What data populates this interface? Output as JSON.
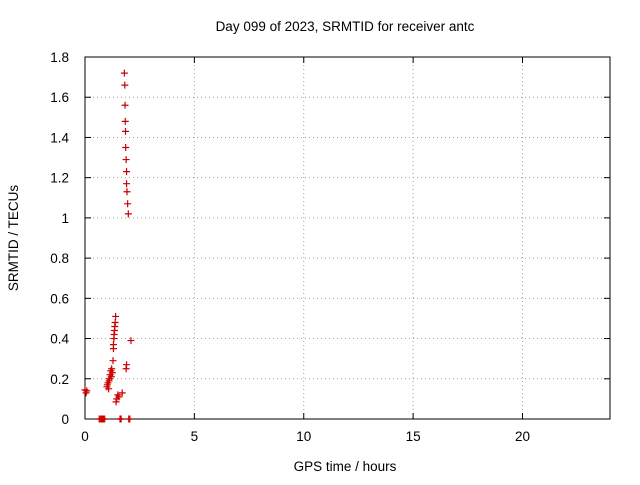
{
  "chart_data": {
    "type": "scatter",
    "title": "Day 099 of 2023, SRMTID for receiver antc",
    "xlabel": "GPS time / hours",
    "ylabel": "SRMTID / TECUs",
    "xlim": [
      0,
      24
    ],
    "ylim": [
      0,
      1.8
    ],
    "xticks": [
      0,
      5,
      10,
      15,
      20
    ],
    "yticks": [
      0,
      0.2,
      0.4,
      0.6,
      0.8,
      1,
      1.2,
      1.4,
      1.6,
      1.8
    ],
    "ytick_labels": [
      "0",
      "0.2",
      "0.4",
      "0.6",
      "0.8",
      "1",
      "1.2",
      "1.4",
      "1.6",
      "1.8"
    ],
    "grid": true,
    "marker": "plus",
    "color": "#cc0000",
    "series": [
      {
        "name": "SRMTID",
        "x": [
          0.0,
          0.05,
          0.08,
          0.65,
          0.7,
          0.75,
          0.8,
          0.85,
          0.9,
          1.0,
          1.02,
          1.05,
          1.08,
          1.1,
          1.12,
          1.15,
          1.18,
          1.2,
          1.22,
          1.25,
          1.28,
          1.3,
          1.3,
          1.32,
          1.33,
          1.35,
          1.36,
          1.38,
          1.4,
          1.42,
          1.45,
          1.5,
          1.55,
          1.6,
          1.62,
          1.65,
          1.7,
          1.8,
          1.82,
          1.83,
          1.84,
          1.85,
          1.86,
          1.88,
          1.9,
          1.9,
          1.92,
          1.95,
          1.98,
          1.88,
          1.9,
          2.0,
          2.05,
          2.1
        ],
        "y": [
          0.145,
          0.13,
          0.14,
          0.0,
          0.0,
          0.0,
          0.0,
          0.0,
          0.0,
          0.16,
          0.17,
          0.18,
          0.15,
          0.19,
          0.2,
          0.22,
          0.24,
          0.21,
          0.25,
          0.23,
          0.29,
          0.35,
          0.37,
          0.4,
          0.42,
          0.44,
          0.46,
          0.48,
          0.51,
          0.085,
          0.1,
          0.12,
          0.11,
          0.0,
          0.0,
          0.0,
          0.13,
          1.72,
          1.66,
          1.56,
          1.48,
          1.43,
          1.35,
          1.29,
          1.23,
          1.17,
          1.13,
          1.07,
          1.02,
          0.25,
          0.27,
          0.0,
          0.0,
          0.39
        ]
      }
    ]
  }
}
